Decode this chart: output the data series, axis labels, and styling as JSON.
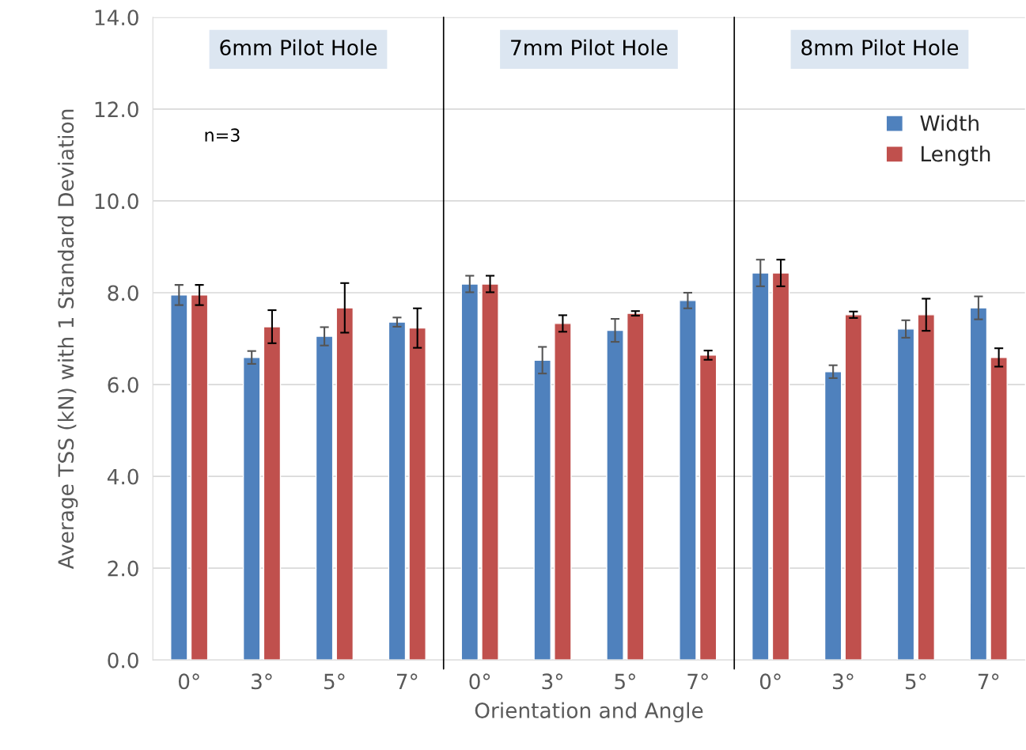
{
  "chart_data": {
    "type": "bar",
    "categories": [
      "0°",
      "3°",
      "5°",
      "7°",
      "0°",
      "3°",
      "5°",
      "7°",
      "0°",
      "3°",
      "5°",
      "7°"
    ],
    "series": [
      {
        "name": "Width",
        "color": "#4f81bd",
        "values": [
          7.95,
          6.59,
          7.05,
          7.36,
          8.19,
          6.53,
          7.18,
          7.83,
          8.43,
          6.28,
          7.21,
          7.67
        ],
        "errors": [
          0.22,
          0.14,
          0.2,
          0.1,
          0.18,
          0.29,
          0.25,
          0.17,
          0.29,
          0.14,
          0.19,
          0.25
        ]
      },
      {
        "name": "Length",
        "color": "#c0504d",
        "values": [
          7.95,
          7.26,
          7.67,
          7.23,
          8.19,
          7.33,
          7.55,
          6.64,
          8.43,
          7.52,
          7.52,
          6.59
        ],
        "errors": [
          0.22,
          0.36,
          0.54,
          0.43,
          0.18,
          0.18,
          0.05,
          0.1,
          0.29,
          0.07,
          0.35,
          0.2
        ]
      }
    ],
    "xlabel": "Orientation and Angle",
    "ylabel": "Average TSS (kN) with 1 Standard Deviation",
    "ylim": [
      0,
      14
    ],
    "yticks": [
      {
        "value": 0,
        "label": "0.0"
      },
      {
        "value": 2,
        "label": "2.0"
      },
      {
        "value": 4,
        "label": "4.0"
      },
      {
        "value": 6,
        "label": "6.0"
      },
      {
        "value": 8,
        "label": "8.0"
      },
      {
        "value": 10,
        "label": "10.0"
      },
      {
        "value": 12,
        "label": "12.0"
      },
      {
        "value": 14,
        "label": "14.0"
      }
    ],
    "annotations": [
      "6mm Pilot Hole",
      "7mm Pilot Hole",
      "8mm Pilot Hole",
      "n=3"
    ],
    "grid": "y",
    "legend": "top right"
  }
}
